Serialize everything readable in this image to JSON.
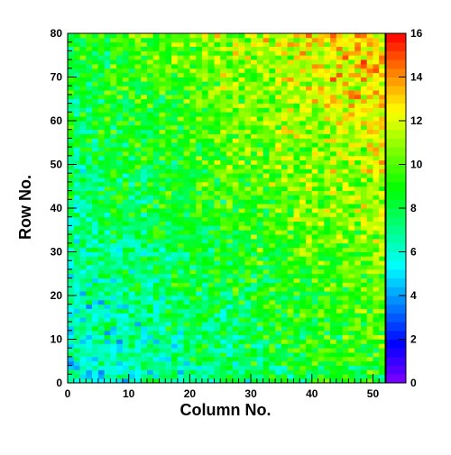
{
  "chart_data": {
    "type": "heatmap",
    "title": "",
    "xlabel": "Column No.",
    "ylabel": "Row No.",
    "xlim": [
      0,
      52
    ],
    "ylim": [
      0,
      80
    ],
    "zlim": [
      0,
      16
    ],
    "x_ticks": [
      0,
      10,
      20,
      30,
      40,
      50
    ],
    "y_ticks": [
      0,
      10,
      20,
      30,
      40,
      50,
      60,
      70,
      80
    ],
    "z_ticks": [
      0,
      2,
      4,
      6,
      8,
      10,
      12,
      14,
      16
    ],
    "n_columns": 52,
    "n_rows": 80,
    "bin_width": 1,
    "colorbar": true,
    "colormap": [
      "#7f00ff",
      "#0000ff",
      "#0080ff",
      "#00ffff",
      "#00ff80",
      "#00ff00",
      "#80ff00",
      "#ffff00",
      "#ff8000",
      "#ff0000"
    ],
    "value_model": {
      "description": "Cell values rise from about 5-7 near the lower-left corner to about 13-14 in the upper-right region, with strong cell-to-cell fluctuations (roughly ±3).",
      "corner_values": {
        "bottom_left": 5.5,
        "bottom_right": 9,
        "top_left": 8.5,
        "top_right": 13.5
      },
      "noise_amplitude": 3.0,
      "clamp": [
        1,
        16
      ]
    }
  }
}
